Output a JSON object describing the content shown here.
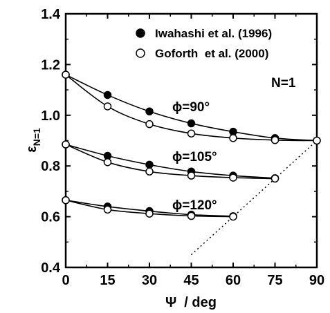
{
  "chart_data": {
    "type": "scatter",
    "x_label": "Ψ  / deg",
    "y_label_main": "ε",
    "y_label_sub": "N=1",
    "x_range": [
      0,
      90
    ],
    "y_range": [
      0.4,
      1.4
    ],
    "x_ticks": [
      0,
      15,
      30,
      45,
      60,
      75,
      90
    ],
    "y_ticks": [
      0.4,
      0.6,
      0.8,
      1.0,
      1.2,
      1.4
    ],
    "x_tick_labels": [
      "0",
      "15",
      "30",
      "45",
      "60",
      "75",
      "90"
    ],
    "y_tick_labels": [
      "0.4",
      "0.6",
      "0.8",
      "1.0",
      "1.2",
      "1.4"
    ],
    "legend_position": "top-right",
    "annotation": "N=1",
    "series": [
      {
        "name": "Iwahashi et al. (1996)",
        "marker": "filled-circle",
        "groups": [
          {
            "x": [
              0,
              15,
              30,
              45,
              60,
              75,
              90
            ],
            "y": [
              1.16,
              1.08,
              1.015,
              0.968,
              0.935,
              0.91,
              0.9
            ]
          },
          {
            "x": [
              0,
              15,
              30,
              45,
              60,
              75
            ],
            "y": [
              0.885,
              0.84,
              0.805,
              0.778,
              0.762,
              0.752
            ]
          },
          {
            "x": [
              0,
              15,
              30,
              45,
              60
            ],
            "y": [
              0.665,
              0.64,
              0.622,
              0.608,
              0.602
            ]
          }
        ]
      },
      {
        "name": "Goforth  et al. (2000)",
        "marker": "open-circle",
        "groups": [
          {
            "x": [
              0,
              15,
              30,
              45,
              60,
              75,
              90
            ],
            "y": [
              1.16,
              1.035,
              0.965,
              0.928,
              0.91,
              0.902,
              0.9
            ]
          },
          {
            "x": [
              0,
              15,
              30,
              45,
              60,
              75
            ],
            "y": [
              0.885,
              0.815,
              0.778,
              0.762,
              0.754,
              0.75
            ]
          },
          {
            "x": [
              0,
              15,
              30,
              45,
              60
            ],
            "y": [
              0.665,
              0.628,
              0.612,
              0.603,
              0.6
            ]
          }
        ]
      }
    ],
    "curve_labels": [
      {
        "text": "ϕ=90°",
        "x": 45,
        "y": 1.02
      },
      {
        "text": "ϕ=105°",
        "x": 45,
        "y": 0.81
      },
      {
        "text": "ϕ=120°",
        "x": 45,
        "y": 0.63
      }
    ],
    "dotted_line": {
      "x": [
        45,
        90
      ],
      "y": [
        0.45,
        0.9
      ]
    }
  }
}
